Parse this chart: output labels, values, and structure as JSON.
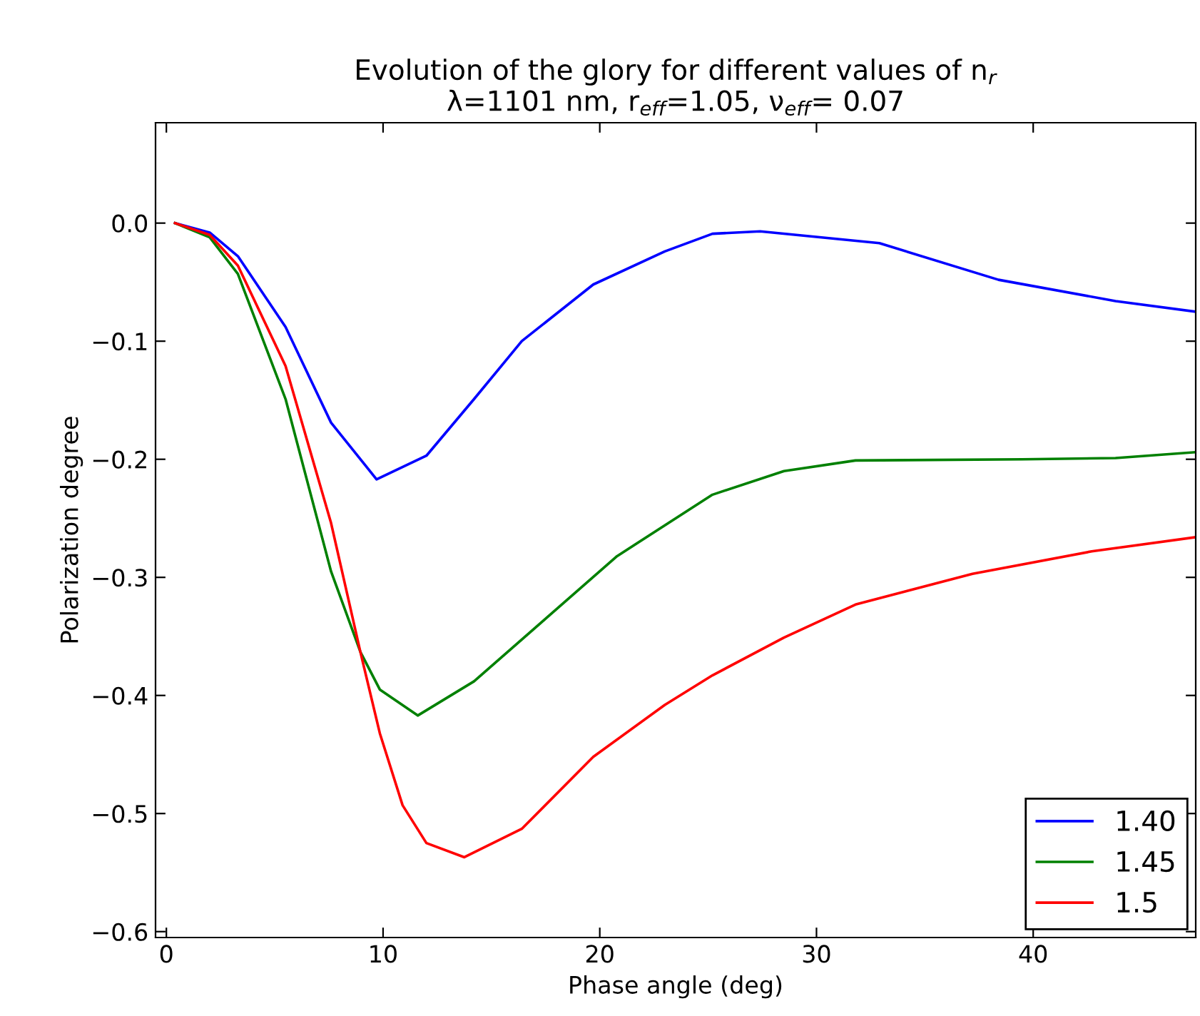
{
  "chart_data": {
    "type": "line",
    "title": "Evolution of the glory for different values of n$_{r}$\nλ=1101 nm, r$_{eff}$=1.05, ν$_{eff}$= 0.07",
    "xlabel": "Phase angle (deg)",
    "ylabel": "Polarization degree",
    "xlim": [
      -0.5,
      47.5
    ],
    "ylim": [
      -0.605,
      0.085
    ],
    "xticks": [
      0,
      10,
      20,
      30,
      40
    ],
    "yticks": [
      {
        "value": 0.0,
        "label": "0.0"
      },
      {
        "value": -0.1,
        "label": "−0.1"
      },
      {
        "value": -0.2,
        "label": "−0.2"
      },
      {
        "value": -0.3,
        "label": "−0.3"
      },
      {
        "value": -0.4,
        "label": "−0.4"
      },
      {
        "value": -0.5,
        "label": "−0.5"
      },
      {
        "value": -0.6,
        "label": "−0.6"
      }
    ],
    "legend": "bottom right",
    "grid": false,
    "marker": "none",
    "line_style": "solid",
    "series": [
      {
        "name": "1.40",
        "color": "#0000ff",
        "x": [
          0.4,
          2,
          3.3,
          5.5,
          7.6,
          9.7,
          12.0,
          14.2,
          16.4,
          19.7,
          23.0,
          25.2,
          27.4,
          32.9,
          38.4,
          43.8,
          47.5
        ],
        "values": [
          0,
          -0.008,
          -0.028,
          -0.088,
          -0.169,
          -0.217,
          -0.197,
          -0.149,
          -0.1,
          -0.052,
          -0.024,
          -0.009,
          -0.007,
          -0.017,
          -0.048,
          -0.066,
          -0.075
        ]
      },
      {
        "name": "1.45",
        "color": "#008000",
        "x": [
          0.4,
          2,
          3.3,
          5.5,
          7.6,
          8.95,
          9.85,
          11.6,
          14.2,
          17.5,
          20.8,
          25.2,
          28.5,
          31.8,
          39.5,
          43.8,
          47.5
        ],
        "values": [
          0,
          -0.012,
          -0.043,
          -0.149,
          -0.295,
          -0.363,
          -0.395,
          -0.417,
          -0.388,
          -0.335,
          -0.282,
          -0.23,
          -0.21,
          -0.201,
          -0.2,
          -0.199,
          -0.194
        ]
      },
      {
        "name": "1.5",
        "color": "#ff0000",
        "x": [
          0.4,
          2,
          3.3,
          5.5,
          7.6,
          8.95,
          9.85,
          10.9,
          12.0,
          13.75,
          16.4,
          19.7,
          23.0,
          25.2,
          28.5,
          31.8,
          37.2,
          42.7,
          47.5
        ],
        "values": [
          0,
          -0.01,
          -0.036,
          -0.121,
          -0.254,
          -0.363,
          -0.432,
          -0.493,
          -0.525,
          -0.537,
          -0.513,
          -0.452,
          -0.408,
          -0.383,
          -0.351,
          -0.323,
          -0.297,
          -0.278,
          -0.266
        ]
      }
    ]
  }
}
